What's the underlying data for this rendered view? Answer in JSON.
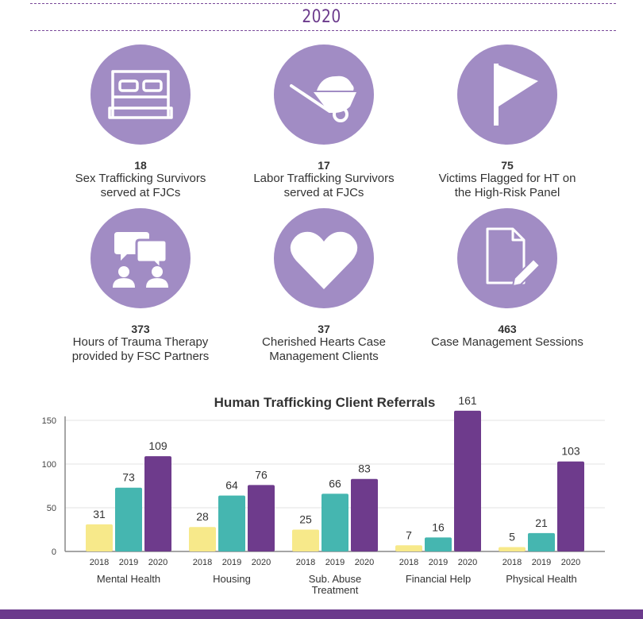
{
  "header": {
    "year": "2020"
  },
  "stats": [
    {
      "value": "18",
      "line1": "Sex Trafficking Survivors",
      "line2": "served at FJCs",
      "icon": "bed-icon"
    },
    {
      "value": "17",
      "line1": "Labor Trafficking Survivors",
      "line2": "served at FJCs",
      "icon": "wheelbarrow-icon"
    },
    {
      "value": "75",
      "line1": "Victims Flagged for HT on",
      "line2": "the High-Risk Panel",
      "icon": "flag-icon"
    },
    {
      "value": "373",
      "line1": "Hours of Trauma Therapy",
      "line2": "provided by FSC Partners",
      "icon": "chat-people-icon"
    },
    {
      "value": "37",
      "line1": "Cherished Hearts Case",
      "line2": "Management Clients",
      "icon": "heart-icon"
    },
    {
      "value": "463",
      "line1": "Case Management Sessions",
      "line2": "",
      "icon": "document-edit-icon"
    }
  ],
  "colors": {
    "accent": "#6b3a8c",
    "circle": "#a18cc4",
    "y2018": "#f7e98a",
    "y2019": "#45b6b0",
    "y2020": "#6e3b8c"
  },
  "chart_data": {
    "type": "bar",
    "title": "Human Trafficking Client Referrals",
    "categories": [
      "Mental Health",
      "Housing",
      "Sub. Abuse\nTreatment",
      "Financial Help",
      "Physical Health"
    ],
    "series": [
      {
        "name": "2018",
        "values": [
          31,
          28,
          25,
          7,
          5
        ]
      },
      {
        "name": "2019",
        "values": [
          73,
          64,
          66,
          16,
          21
        ]
      },
      {
        "name": "2020",
        "values": [
          109,
          76,
          83,
          161,
          103
        ]
      }
    ],
    "yticks": [
      0,
      50,
      100,
      150
    ],
    "ylim": [
      0,
      160
    ],
    "grid": true
  }
}
